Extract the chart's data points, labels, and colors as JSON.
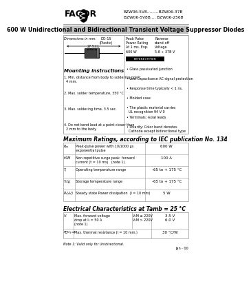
{
  "bg_color": "#ffffff",
  "company": "FAGOR",
  "part_line1": "BZW06-5V8.........BZW06-37B",
  "part_line2": "BZW06-5V8B.... BZW06-256B",
  "subtitle": "600 W Unidirectional and Bidirectional Transient Voltage Suppressor Diodes",
  "dim_title": "Dimensions in mm.",
  "package": "DO-15\n(Plastic)",
  "peak_pulse": "Peak Pulse\nPower Rating\nAt 1 ms. Exp.\n600 W",
  "reverse_voltage": "Reverse\nstand-off\nVoltage\n5.8 ÷ 37B V",
  "badge_text": "BYTERECTIFIER",
  "features": [
    "Glass passivated junction",
    "Low Capacitance AC signal protection",
    "Response time typically < 1 ns.",
    "Molded case",
    "The plastic material carries\n  UL recognition 94 V-0",
    "Terminals: Axial leads",
    "Polarity: Color band denotes\n  Cathode except bidirectional type"
  ],
  "mounting_title": "Mounting instructions",
  "mounting": [
    "Min. distance from body to soldering point:\n  4 mm.",
    "Max. solder temperature, 350 °C",
    "Max. soldering time, 3.5 sec.",
    "Do not bend lead at a point closer than\n  2 mm to the body"
  ],
  "max_ratings_title": "Maximum Ratings, according to IEC publication No. 134",
  "max_table": [
    [
      "Pₚₚ",
      "Peak-pulse power with 10/1000 µs\nexponential pulse",
      "600 W"
    ],
    [
      "IₜSM",
      "Non repetitive surge peak  forward\ncurrent (t = 10 ms)   (note 1)",
      "100 A"
    ],
    [
      "Tⱼ",
      "Operating temperature range",
      "-65 to + 175 °C"
    ],
    [
      "Tₛtg",
      "Storage temperature range",
      "-65 to + 175 °C"
    ],
    [
      "Pₙ(ₐV)",
      "Steady state Power dissipation  (l = 10 mm)",
      "5 W"
    ]
  ],
  "elec_title": "Electrical Characteristics at Tamb = 25 °C",
  "elec_row1_sym": "Vₜ",
  "elec_row1_desc": "Max. forward voltage\ndrop at Iₜ = 50 A\n(note 1)",
  "elec_row1_cond1": "VₜM ≤ 220V",
  "elec_row1_cond2": "VₜM > 220V",
  "elec_row1_val1": "3.5 V",
  "elec_row1_val2": "6.0 V",
  "elec_row2_sym": "R₝h(j-a)",
  "elec_row2_desc": "Max. thermal resistance (l = 10 mm.)",
  "elec_row2_val": "30 °C/W",
  "note": "Note 1: Valid only for Unidirectional.",
  "date": "Jan - 00",
  "gray_bar": "#c0c0c0",
  "line_color": "#999999"
}
